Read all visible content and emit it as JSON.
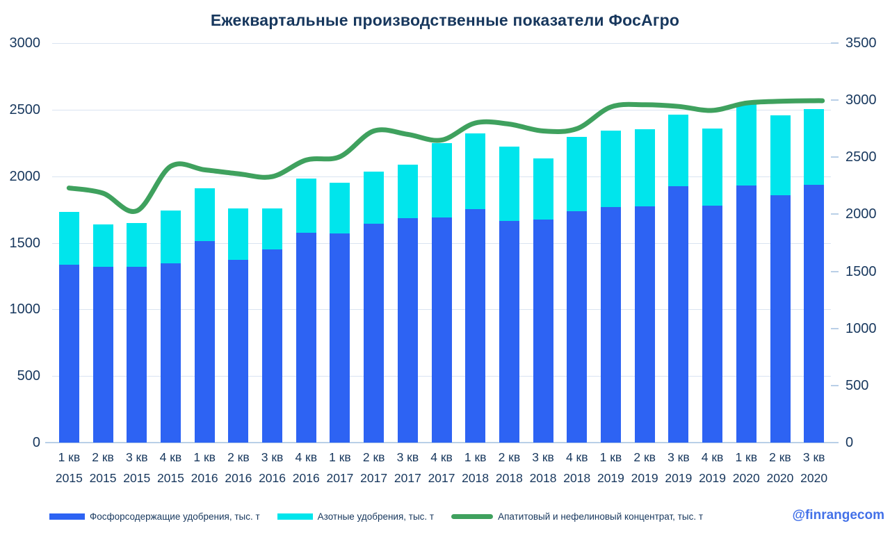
{
  "title": "Ежеквартальные производственные показатели ФосАгро",
  "watermark": "@finrangecom",
  "colors": {
    "phosphate_bar": "#2d63f3",
    "nitrogen_bar": "#00e5ec",
    "apatite_line": "#3fa15e",
    "text_navy": "#17375d",
    "gridline": "#d9e3f1",
    "axis_line": "#b9cfe7",
    "watermark_blue": "#4371e8",
    "background": "#ffffff"
  },
  "chart_data": {
    "type": "bar",
    "subtype": "stacked-bars-with-smooth-line",
    "title": "Ежеквартальные производственные показатели ФосАгро",
    "grid": true,
    "legend_position": "bottom",
    "categories_quarter": [
      "1 кв",
      "2 кв",
      "3 кв",
      "4 кв",
      "1 кв",
      "2 кв",
      "3 кв",
      "4 кв",
      "1 кв",
      "2 кв",
      "3 кв",
      "4 кв",
      "1 кв",
      "2 кв",
      "3 кв",
      "4 кв",
      "1 кв",
      "2 кв",
      "3 кв",
      "4 кв",
      "1 кв",
      "2 кв",
      "3 кв"
    ],
    "categories_year": [
      "2015",
      "2015",
      "2015",
      "2015",
      "2016",
      "2016",
      "2016",
      "2016",
      "2017",
      "2017",
      "2017",
      "2017",
      "2018",
      "2018",
      "2018",
      "2018",
      "2019",
      "2019",
      "2019",
      "2019",
      "2020",
      "2020",
      "2020"
    ],
    "series": [
      {
        "name": "Фосфорсодержащие удобрения, тыс. т",
        "type": "bar",
        "stack": "fertilizers",
        "axis": "left",
        "color": "#2d63f3",
        "values": [
          1335,
          1320,
          1320,
          1345,
          1515,
          1370,
          1450,
          1575,
          1570,
          1645,
          1685,
          1690,
          1755,
          1665,
          1675,
          1740,
          1770,
          1775,
          1925,
          1780,
          1930,
          1860,
          1935
        ]
      },
      {
        "name": "Азотные удобрения, тыс. т",
        "type": "bar",
        "stack": "fertilizers",
        "axis": "left",
        "color": "#00e5ec",
        "values": [
          395,
          320,
          330,
          400,
          395,
          390,
          310,
          410,
          380,
          390,
          400,
          560,
          565,
          560,
          460,
          555,
          570,
          580,
          540,
          580,
          615,
          600,
          570
        ]
      },
      {
        "name": "Апатитовый и нефелиновый концентрат, тыс. т",
        "type": "line",
        "axis": "right",
        "color": "#3fa15e",
        "values": [
          2230,
          2185,
          2030,
          2420,
          2390,
          2355,
          2330,
          2475,
          2505,
          2730,
          2700,
          2650,
          2800,
          2790,
          2730,
          2750,
          2940,
          2960,
          2945,
          2910,
          2975,
          2990,
          2995
        ]
      }
    ],
    "left_axis": {
      "min": 0,
      "max": 3000,
      "step": 500,
      "labels": [
        "3000",
        "2500",
        "2000",
        "1500",
        "1000",
        "500",
        "0"
      ]
    },
    "right_axis": {
      "min": 0,
      "max": 3500,
      "step": 500,
      "labels": [
        "3500",
        "3000",
        "2500",
        "2000",
        "1500",
        "1000",
        "500",
        "0"
      ]
    }
  }
}
